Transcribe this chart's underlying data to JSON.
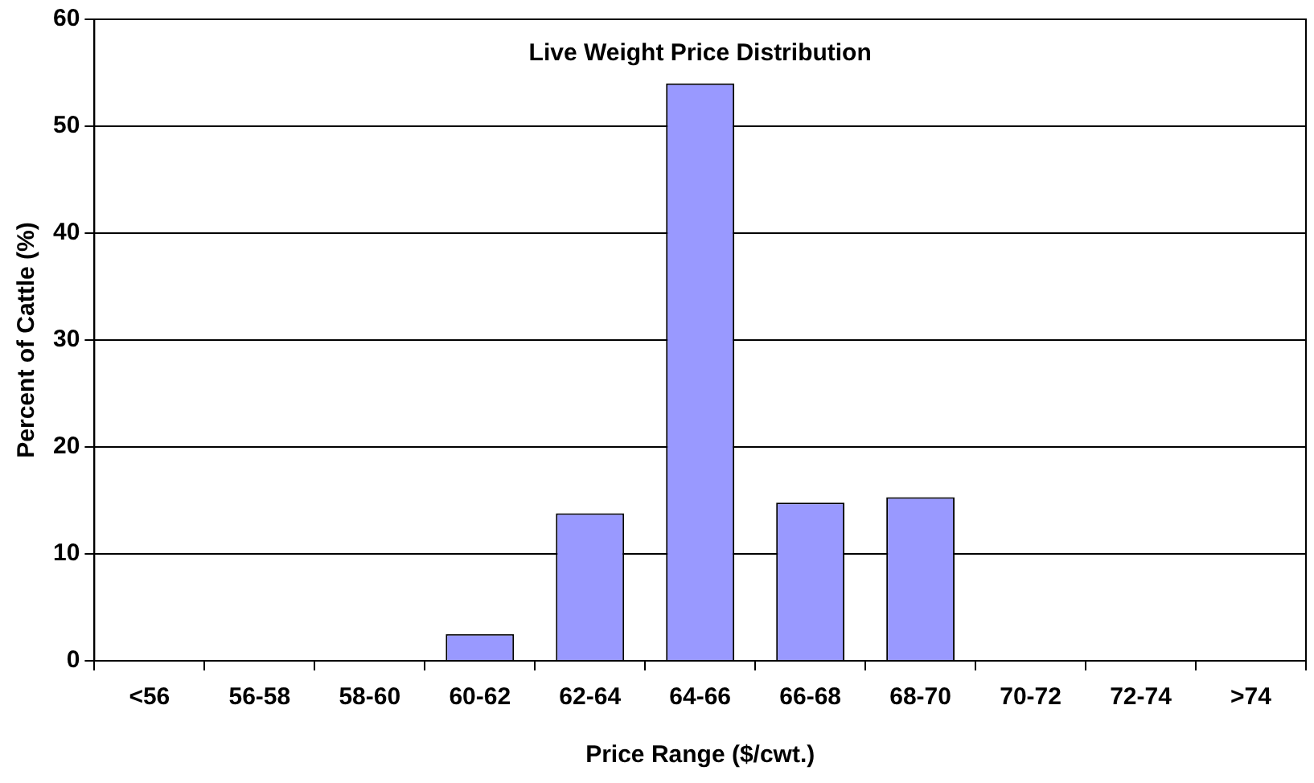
{
  "chart_data": {
    "type": "bar",
    "title": "Live Weight Price Distribution",
    "xlabel": "Price Range ($/cwt.)",
    "ylabel": "Percent of Cattle (%)",
    "categories": [
      "<56",
      "56-58",
      "58-60",
      "60-62",
      "62-64",
      "64-66",
      "66-68",
      "68-70",
      "70-72",
      "72-74",
      ">74"
    ],
    "values": [
      0,
      0,
      0,
      2.5,
      13.8,
      54,
      14.8,
      15.3,
      0,
      0,
      0
    ],
    "color": "#9999ff",
    "ylim": [
      0,
      60
    ],
    "yticks": [
      0,
      10,
      20,
      30,
      40,
      50,
      60
    ],
    "grid": "y",
    "legend": false
  }
}
